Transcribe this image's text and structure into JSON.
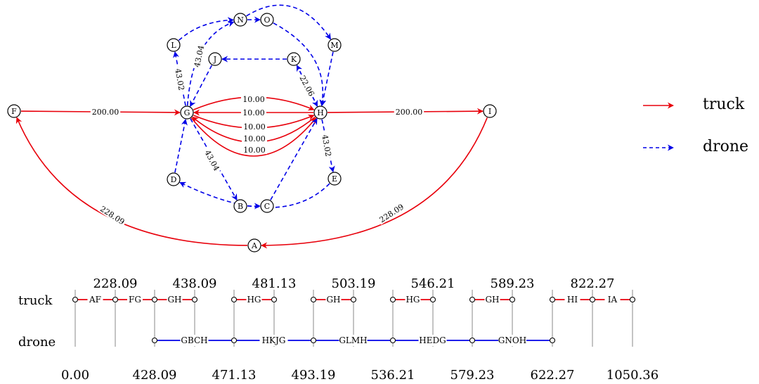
{
  "nodes": [
    "A",
    "B",
    "C",
    "D",
    "E",
    "F",
    "G",
    "H",
    "I",
    "J",
    "K",
    "L",
    "M",
    "N",
    "O"
  ],
  "truck_color": "#e8000b",
  "drone_color": "#0000e8",
  "edges": [
    {
      "id": "FG",
      "type": "truck",
      "label": "200.00"
    },
    {
      "id": "HI",
      "type": "truck",
      "label": "200.00"
    },
    {
      "id": "IA",
      "type": "truck",
      "label": "228.09"
    },
    {
      "id": "AF",
      "type": "truck",
      "label": "228.09"
    },
    {
      "id": "GH1",
      "type": "truck",
      "label": "10.00"
    },
    {
      "id": "HG1",
      "type": "truck",
      "label": "10.00"
    },
    {
      "id": "GH2",
      "type": "truck",
      "label": "10.00"
    },
    {
      "id": "HG2",
      "type": "truck",
      "label": "10.00"
    },
    {
      "id": "GH3",
      "type": "truck",
      "label": "10.00"
    },
    {
      "id": "GL",
      "type": "drone",
      "label": "43.02"
    },
    {
      "id": "GN",
      "type": "drone",
      "label": "43.04"
    },
    {
      "id": "GB",
      "type": "drone",
      "label": "43.04"
    },
    {
      "id": "KH",
      "type": "drone",
      "label": "22.06"
    },
    {
      "id": "HE",
      "type": "drone",
      "label": "43.02"
    },
    {
      "id": "LN",
      "type": "drone",
      "label": ""
    },
    {
      "id": "NO",
      "type": "drone",
      "label": ""
    },
    {
      "id": "OH",
      "type": "drone",
      "label": ""
    },
    {
      "id": "OM",
      "type": "drone",
      "label": ""
    },
    {
      "id": "MH",
      "type": "drone",
      "label": ""
    },
    {
      "id": "HK",
      "type": "drone",
      "label": ""
    },
    {
      "id": "KJ",
      "type": "drone",
      "label": ""
    },
    {
      "id": "JG",
      "type": "drone",
      "label": ""
    },
    {
      "id": "BC",
      "type": "drone",
      "label": ""
    },
    {
      "id": "CH",
      "type": "drone",
      "label": ""
    },
    {
      "id": "ED",
      "type": "drone",
      "label": ""
    },
    {
      "id": "DG",
      "type": "drone",
      "label": ""
    }
  ],
  "legend": {
    "truck": "truck",
    "drone": "drone"
  },
  "timeline": {
    "truck_label": "truck",
    "drone_label": "drone",
    "top_values": [
      "228.09",
      "438.09",
      "481.13",
      "503.19",
      "546.21",
      "589.23",
      "822.27"
    ],
    "bottom_values": [
      "0.00",
      "428.09",
      "471.13",
      "493.19",
      "536.21",
      "579.23",
      "622.27",
      "1050.36"
    ],
    "truck_segments": [
      "AF",
      "FG",
      "GH",
      "HG",
      "GH",
      "HG",
      "GH",
      "HI",
      "IA"
    ],
    "drone_segments": [
      "GBCH",
      "HKJG",
      "GLMH",
      "HEDG",
      "GNOH"
    ]
  }
}
